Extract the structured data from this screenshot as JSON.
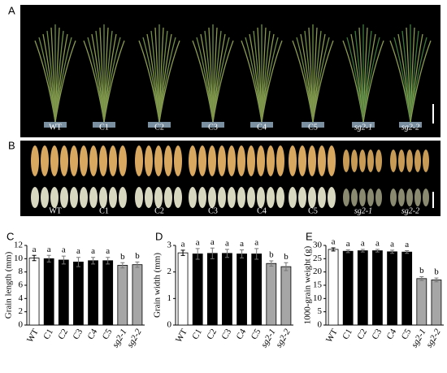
{
  "panels": {
    "A": {
      "label": "A",
      "plant_labels": [
        "WT",
        "C1",
        "C2",
        "C3",
        "C4",
        "C5",
        "sg2-1",
        "sg2-2"
      ]
    },
    "B": {
      "label": "B",
      "grain_labels": [
        "WT",
        "C1",
        "C2",
        "C3",
        "C4",
        "C5",
        "sg2-1",
        "sg2-2"
      ]
    }
  },
  "chart_data": [
    {
      "type": "bar",
      "panel_label": "C",
      "y_label": "Grain length (mm)",
      "categories": [
        "WT",
        "C1",
        "C2",
        "C3",
        "C4",
        "C5",
        "sg2-1",
        "sg2-2"
      ],
      "values": [
        10.1,
        10.0,
        9.8,
        9.5,
        9.7,
        9.7,
        9.0,
        9.1
      ],
      "errors": [
        0.4,
        0.5,
        0.6,
        0.7,
        0.5,
        0.5,
        0.4,
        0.4
      ],
      "letters": [
        "a",
        "a",
        "a",
        "a",
        "a",
        "a",
        "b",
        "b"
      ],
      "colors": [
        "#ffffff",
        "#000000",
        "#000000",
        "#000000",
        "#000000",
        "#000000",
        "#a6a6a6",
        "#a6a6a6"
      ],
      "ylim": [
        0,
        12
      ],
      "yticks": [
        0,
        2,
        4,
        6,
        8,
        10,
        12
      ]
    },
    {
      "type": "bar",
      "panel_label": "D",
      "y_label": "Grain width (mm)",
      "categories": [
        "WT",
        "C1",
        "C2",
        "C3",
        "C4",
        "C5",
        "sg2-1",
        "sg2-2"
      ],
      "values": [
        2.72,
        2.68,
        2.7,
        2.7,
        2.68,
        2.68,
        2.32,
        2.2
      ],
      "errors": [
        0.1,
        0.2,
        0.2,
        0.15,
        0.15,
        0.2,
        0.1,
        0.15
      ],
      "letters": [
        "a",
        "a",
        "a",
        "a",
        "a",
        "a",
        "b",
        "b"
      ],
      "colors": [
        "#ffffff",
        "#000000",
        "#000000",
        "#000000",
        "#000000",
        "#000000",
        "#a6a6a6",
        "#a6a6a6"
      ],
      "ylim": [
        0,
        3
      ],
      "yticks": [
        0,
        1,
        2,
        3
      ]
    },
    {
      "type": "bar",
      "panel_label": "E",
      "y_label": "1000-grain weight (g)",
      "categories": [
        "WT",
        "C1",
        "C2",
        "C3",
        "C4",
        "C5",
        "sg2-1",
        "sg2-2"
      ],
      "values": [
        28.5,
        27.8,
        28.0,
        28.0,
        27.6,
        27.5,
        17.5,
        17.0
      ],
      "errors": [
        0.6,
        0.5,
        0.5,
        0.5,
        0.6,
        0.5,
        0.7,
        0.7
      ],
      "letters": [
        "a",
        "a",
        "a",
        "a",
        "a",
        "a",
        "b",
        "b"
      ],
      "colors": [
        "#ffffff",
        "#000000",
        "#000000",
        "#000000",
        "#000000",
        "#000000",
        "#a6a6a6",
        "#a6a6a6"
      ],
      "ylim": [
        0,
        30
      ],
      "yticks": [
        0,
        5,
        10,
        15,
        20,
        25,
        30
      ]
    }
  ]
}
